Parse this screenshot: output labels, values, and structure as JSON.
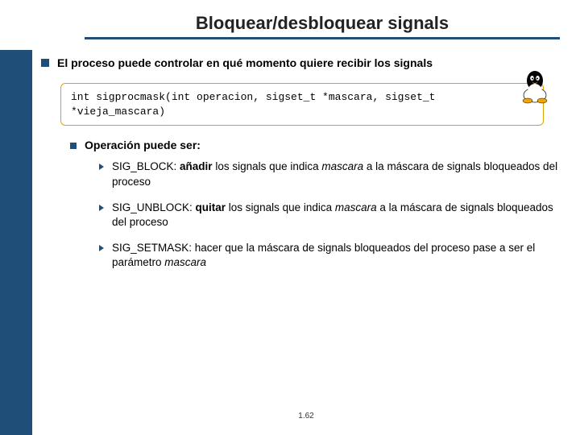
{
  "colors": {
    "accent": "#1f4e79",
    "code_border": "#d9a500",
    "bg": "#ffffff"
  },
  "title": "Bloquear/desbloquear signals",
  "intro": "El proceso puede controlar en qué momento quiere recibir los signals",
  "code": "int sigprocmask(int operacion, sigset_t *mascara, sigset_t *vieja_mascara)",
  "sub": "Operación puede ser:",
  "items": [
    {
      "key": "SIG_BLOCK: ",
      "bold": "añadir",
      "mid1": " los signals que indica ",
      "it": "mascara",
      "rest": " a la máscara de signals bloqueados del proceso"
    },
    {
      "key": "SIG_UNBLOCK: ",
      "bold": "quitar",
      "mid1": " los signals que indica ",
      "it": "mascara",
      "rest": " a la máscara de signals bloqueados del proceso"
    },
    {
      "key": "SIG_SETMASK: ",
      "bold": "",
      "mid1": "hacer que la máscara de signals bloqueados del proceso pase a ser el parámetro ",
      "it": "mascara",
      "rest": ""
    }
  ],
  "page": "1.62"
}
